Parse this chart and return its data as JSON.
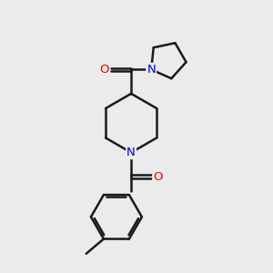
{
  "background_color": "#ebebeb",
  "bond_color": "#1a1a1a",
  "N_color": "#0000ee",
  "O_color": "#ee0000",
  "bond_width": 1.8,
  "dbo": 0.06,
  "figsize": [
    3.0,
    3.0
  ],
  "dpi": 100,
  "xlim": [
    0,
    10
  ],
  "ylim": [
    0,
    10
  ]
}
